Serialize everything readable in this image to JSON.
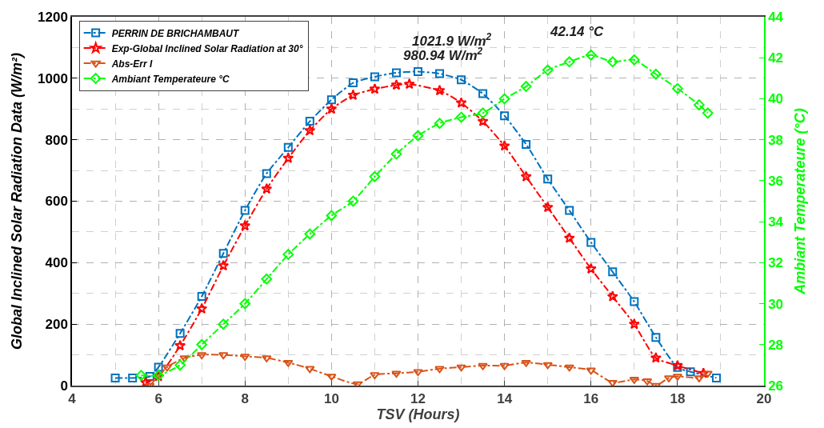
{
  "chart_data": {
    "type": "line",
    "xlabel": "TSV (Hours)",
    "ylabel": "Global Inclined Solar Radiation Data (W/m²)",
    "y2label": "Ambiant Temperateure (°C)",
    "xlim": [
      4,
      20
    ],
    "xticks": [
      4,
      6,
      8,
      10,
      12,
      14,
      16,
      18,
      20
    ],
    "ylim": [
      0,
      1200
    ],
    "yticks": [
      0,
      200,
      400,
      600,
      800,
      1000,
      1200
    ],
    "y2lim": [
      26,
      44
    ],
    "y2ticks": [
      26,
      28,
      30,
      32,
      34,
      36,
      38,
      40,
      42,
      44
    ],
    "grid": true,
    "legend": "top left",
    "line_style": "dashed",
    "series": [
      {
        "name": "PERRIN DE BRICHAMBAUT",
        "color": "#0072bd",
        "marker": "square",
        "x": [
          5.0,
          5.4,
          5.8,
          6.0,
          6.5,
          7.0,
          7.5,
          8.0,
          8.5,
          9.0,
          9.5,
          10.0,
          10.5,
          11.0,
          11.5,
          12.0,
          12.5,
          13.0,
          13.5,
          14.0,
          14.5,
          15.0,
          15.5,
          16.0,
          16.5,
          17.0,
          17.5,
          18.0,
          18.3,
          18.9
        ],
        "values": [
          25,
          25,
          30,
          60,
          170,
          290,
          430,
          570,
          690,
          775,
          860,
          930,
          985,
          1005,
          1018,
          1022,
          1015,
          995,
          950,
          878,
          785,
          672,
          570,
          466,
          370,
          273,
          157,
          59,
          45,
          25
        ]
      },
      {
        "name": "Exp-Global Inclined Solar Radiation at 30°",
        "color": "#ff0000",
        "marker": "star",
        "x": [
          5.7,
          6.0,
          6.5,
          7.0,
          7.5,
          8.0,
          8.5,
          9.0,
          9.5,
          10.0,
          10.5,
          11.0,
          11.5,
          11.8,
          12.5,
          13.0,
          13.5,
          14.0,
          14.5,
          15.0,
          15.5,
          16.0,
          16.5,
          17.0,
          17.5,
          18.0,
          18.6
        ],
        "values": [
          10,
          30,
          130,
          250,
          390,
          520,
          640,
          740,
          830,
          900,
          945,
          965,
          978,
          981,
          960,
          920,
          860,
          780,
          680,
          580,
          480,
          380,
          290,
          200,
          90,
          65,
          40
        ]
      },
      {
        "name": "Abs-Err I",
        "color": "#d95319",
        "marker": "triangle",
        "x": [
          5.8,
          6.2,
          6.6,
          7.0,
          7.5,
          8.0,
          8.5,
          9.0,
          9.5,
          10.0,
          10.6,
          11.0,
          11.5,
          12.0,
          12.5,
          13.0,
          13.5,
          14.0,
          14.5,
          15.0,
          15.5,
          16.0,
          16.5,
          17.0,
          17.3,
          17.5,
          17.8,
          18.0,
          18.5,
          18.7
        ],
        "values": [
          0,
          60,
          90,
          100,
          100,
          95,
          90,
          75,
          55,
          30,
          5,
          35,
          40,
          45,
          55,
          60,
          65,
          65,
          75,
          68,
          60,
          50,
          10,
          20,
          15,
          0,
          25,
          30,
          25,
          40
        ]
      },
      {
        "name": "Ambiant Temperateure °C",
        "color": "#00ff00",
        "marker": "diamond",
        "axis": "y2",
        "x": [
          5.6,
          6.0,
          6.5,
          7.0,
          7.5,
          8.0,
          8.5,
          9.0,
          9.5,
          10.0,
          10.5,
          11.0,
          11.5,
          12.0,
          12.5,
          13.0,
          13.5,
          14.0,
          14.5,
          15.0,
          15.5,
          16.0,
          16.5,
          17.0,
          17.5,
          18.0,
          18.5,
          18.7
        ],
        "values": [
          26.5,
          26.5,
          27.0,
          28.0,
          29.0,
          30.0,
          31.2,
          32.4,
          33.4,
          34.3,
          35.0,
          36.2,
          37.3,
          38.2,
          38.8,
          39.1,
          39.3,
          40.0,
          40.6,
          41.4,
          41.8,
          42.14,
          41.8,
          41.9,
          41.2,
          40.5,
          39.7,
          39.3
        ]
      }
    ],
    "annotations": [
      {
        "text": "1021.9 W/m$^{2}$",
        "x": 12.0,
        "y": 1021.9
      },
      {
        "text": "980.94 W/m$^{2}$",
        "x": 11.8,
        "y": 980.94
      },
      "42.14 °C"
    ]
  }
}
